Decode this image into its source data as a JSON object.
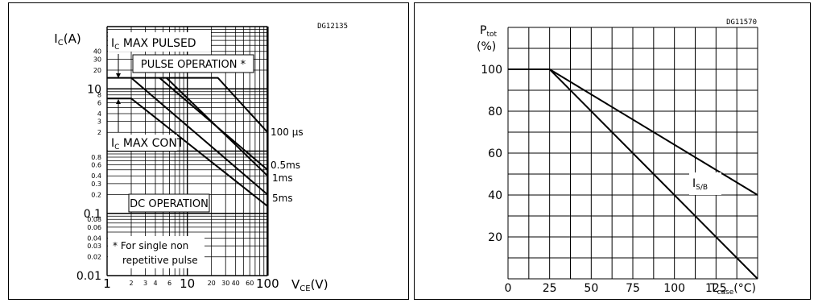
{
  "chart_data": [
    {
      "type": "line",
      "code": "DG12135",
      "x_scale": "log",
      "y_scale": "log",
      "xlim": [
        1,
        1000
      ],
      "ylim": [
        0.01,
        100
      ],
      "ylabel_main": "I",
      "ylabel_sub": "C",
      "ylabel_unit": "(A)",
      "xlabel_main": "V",
      "xlabel_sub": "CE",
      "xlabel_unit": "(V)",
      "x_ticks_major": [
        {
          "v": 1,
          "label": "1"
        },
        {
          "v": 10,
          "label": "10"
        },
        {
          "v": 100,
          "label": "100"
        }
      ],
      "x_ticks_minor": [
        {
          "v": 2,
          "label": "2"
        },
        {
          "v": 3,
          "label": "3"
        },
        {
          "v": 4,
          "label": "4"
        },
        {
          "v": 6,
          "label": "6"
        },
        {
          "v": 20,
          "label": "20"
        },
        {
          "v": 30,
          "label": "30"
        },
        {
          "v": 40,
          "label": "40"
        },
        {
          "v": 60,
          "label": "60"
        }
      ],
      "y_ticks_major": [
        {
          "v": 0.01,
          "label": "0.01"
        },
        {
          "v": 0.1,
          "label": "0.1"
        },
        {
          "v": 10,
          "label": "10"
        }
      ],
      "y_ticks_minor": [
        {
          "v": 0.02,
          "label": "0.02"
        },
        {
          "v": 0.03,
          "label": "0.03"
        },
        {
          "v": 0.04,
          "label": "0.04"
        },
        {
          "v": 0.06,
          "label": "0.06"
        },
        {
          "v": 0.08,
          "label": "0.08"
        },
        {
          "v": 0.2,
          "label": "0.2"
        },
        {
          "v": 0.3,
          "label": "0.3"
        },
        {
          "v": 0.4,
          "label": "0.4"
        },
        {
          "v": 0.6,
          "label": "0.6"
        },
        {
          "v": 0.8,
          "label": "0.8"
        },
        {
          "v": 2,
          "label": "2"
        },
        {
          "v": 3,
          "label": "3"
        },
        {
          "v": 4,
          "label": "4"
        },
        {
          "v": 6,
          "label": "6"
        },
        {
          "v": 8,
          "label": "8"
        },
        {
          "v": 20,
          "label": "20"
        },
        {
          "v": 30,
          "label": "30"
        },
        {
          "v": 40,
          "label": "40"
        }
      ],
      "series": [
        {
          "name": "100 μs",
          "points": [
            [
              1,
              15
            ],
            [
              24,
              15
            ],
            [
              100,
              2
            ]
          ]
        },
        {
          "name": "0.5ms",
          "points": [
            [
              4.5,
              15
            ],
            [
              100,
              0.5
            ]
          ]
        },
        {
          "name": "1ms",
          "points": [
            [
              5.5,
              15
            ],
            [
              100,
              0.4
            ]
          ]
        },
        {
          "name": "5ms",
          "points": [
            [
              2,
              15
            ],
            [
              100,
              0.2
            ]
          ]
        },
        {
          "name": "DC",
          "points": [
            [
              1,
              7
            ],
            [
              2,
              7
            ],
            [
              100,
              0.13
            ]
          ]
        }
      ],
      "vertical_limit_x": 100,
      "labels": {
        "ic_max_pulsed_main": "I",
        "ic_max_pulsed_sub": "C",
        "ic_max_pulsed_rest": " MAX PULSED",
        "pulse_operation": "PULSE OPERATION *",
        "ic_max_cont_main": "I",
        "ic_max_cont_sub": "C",
        "ic_max_cont_rest": " MAX CONT",
        "dc_operation": "DC OPERATION",
        "footnote_line1": "* For single non",
        "footnote_line2": "repetitive pulse",
        "s100us": "100 μs",
        "s05ms": "0.5ms",
        "s1ms": "1ms",
        "s5ms": "5ms"
      }
    },
    {
      "type": "line",
      "code": "DG11570",
      "xlim": [
        0,
        150
      ],
      "ylim": [
        0,
        120
      ],
      "ylabel_main": "P",
      "ylabel_sub": "tot",
      "ylabel_unit": "(%)",
      "xlabel_main": "T",
      "xlabel_sub": "case",
      "xlabel_unit": "(°C)",
      "x_ticks": [
        {
          "v": 0,
          "label": "0"
        },
        {
          "v": 25,
          "label": "25"
        },
        {
          "v": 50,
          "label": "50"
        },
        {
          "v": 75,
          "label": "75"
        },
        {
          "v": 100,
          "label": "100"
        },
        {
          "v": 125,
          "label": "125"
        }
      ],
      "y_ticks": [
        {
          "v": 20,
          "label": "20"
        },
        {
          "v": 40,
          "label": "40"
        },
        {
          "v": 60,
          "label": "60"
        },
        {
          "v": 80,
          "label": "80"
        },
        {
          "v": 100,
          "label": "100"
        }
      ],
      "series": [
        {
          "name": "Ptot",
          "points": [
            [
              0,
              100
            ],
            [
              25,
              100
            ],
            [
              150,
              0
            ]
          ]
        },
        {
          "name": "IS/B",
          "points": [
            [
              25,
              100
            ],
            [
              150,
              40
            ]
          ]
        }
      ],
      "labels": {
        "isb_main": "I",
        "isb_sub": "S/B"
      }
    }
  ]
}
